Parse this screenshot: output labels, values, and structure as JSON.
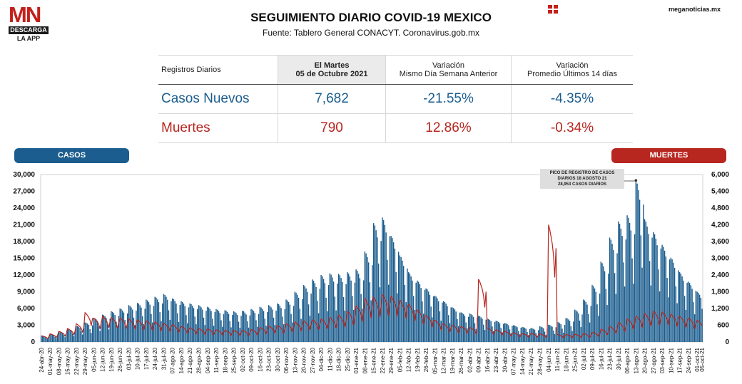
{
  "brand": {
    "logo_mn": "MN",
    "logo_bar": "DESCARGA",
    "logo_sub": "LA APP",
    "site": "meganoticias.mx"
  },
  "header": {
    "title": "SEGUIMIENTO DIARIO COVID-19 MEXICO",
    "source": "Fuente: Tablero General CONACYT. Coronavirus.gob.mx"
  },
  "table": {
    "col1": "Registros Diarios",
    "col2_line1": "El Martes",
    "col2_line2": "05 de Octubre 2021",
    "col3_line1": "Variación",
    "col3_line2": "Mismo Día Semana Anterior",
    "col4_line1": "Variación",
    "col4_line2": "Promedio Últimos 14 días",
    "rows": [
      {
        "label": "Casos Nuevos",
        "value": "7,682",
        "var_week": "-21.55%",
        "var_14": "-4.35%"
      },
      {
        "label": "Muertes",
        "value": "790",
        "var_week": "12.86%",
        "var_14": "-0.34%"
      }
    ]
  },
  "legend": {
    "casos": "CASOS",
    "muertes": "MUERTES"
  },
  "annotation": {
    "line1": "PICO DE REGISTRO DE CASOS",
    "line2": "DIARIOS 18 AGOSTO 21",
    "line3": "28,953 CASOS DIARIOS"
  },
  "colors": {
    "casos": "#1b5d8e",
    "muertes": "#b7261f"
  },
  "chart_data": {
    "type": "bar",
    "x_start": "2020-04-24",
    "x_end": "2021-10-05",
    "y_left": {
      "label": "",
      "range": [
        0,
        30000
      ],
      "ticks": [
        "0",
        "3,000",
        "6,000",
        "9,000",
        "12,000",
        "15,000",
        "18,000",
        "21,000",
        "24,000",
        "27,000",
        "30,000"
      ]
    },
    "y_right": {
      "label": "",
      "range": [
        0,
        6000
      ],
      "ticks": [
        "0",
        "600",
        "1,200",
        "1,800",
        "2,400",
        "3,000",
        "3,600",
        "4,200",
        "4,800",
        "5,400",
        "6,000"
      ]
    },
    "x_ticks": [
      "24-abr-20",
      "01-may-20",
      "08-may-20",
      "15-may-20",
      "22-may-20",
      "29-may-20",
      "05-jun-20",
      "12-jun-20",
      "19-jun-20",
      "26-jun-20",
      "03-jul-20",
      "10-jul-20",
      "17-jul-20",
      "24-jul-20",
      "31-jul-20",
      "07-ago-20",
      "14-ago-20",
      "21-ago-20",
      "28-ago-20",
      "04-sep-20",
      "11-sep-20",
      "18-sep-20",
      "25-sep-20",
      "02-oct-20",
      "09-oct-20",
      "16-oct-20",
      "23-oct-20",
      "30-oct-20",
      "06-nov-20",
      "13-nov-20",
      "20-nov-20",
      "27-nov-20",
      "04-dic-20",
      "11-dic-20",
      "18-dic-20",
      "25-dic-20",
      "01-ene-21",
      "08-ene-21",
      "15-ene-21",
      "22-ene-21",
      "29-ene-21",
      "05-feb-21",
      "12-feb-21",
      "19-feb-21",
      "26-feb-21",
      "05-mar-21",
      "12-mar-21",
      "19-mar-21",
      "26-mar-21",
      "02-abr-21",
      "09-abr-21",
      "16-abr-21",
      "23-abr-21",
      "30-abr-21",
      "07-may-21",
      "14-may-21",
      "21-may-21",
      "28-may-21",
      "04-jun-21",
      "11-jun-21",
      "18-jun-21",
      "25-jun-21",
      "02-jul-21",
      "09-jul-21",
      "16-jul-21",
      "23-jul-21",
      "30-jul-21",
      "06-ago-21",
      "13-ago-21",
      "20-ago-21",
      "27-ago-21",
      "03-sep-21",
      "10-sep-21",
      "17-sep-21",
      "24-sep-21",
      "01-oct-21",
      "05-oct-21"
    ],
    "series": [
      {
        "name": "CASOS",
        "axis": "left",
        "style": "bars",
        "weekly_peaks": [
          1100,
          1400,
          1900,
          2300,
          2900,
          3500,
          4300,
          4900,
          5500,
          6000,
          6600,
          7000,
          7600,
          8100,
          8600,
          7800,
          7300,
          6900,
          6600,
          6300,
          5900,
          5700,
          5500,
          5600,
          5900,
          6300,
          6600,
          6900,
          7600,
          9000,
          10200,
          11200,
          12000,
          12300,
          12200,
          12500,
          13000,
          16200,
          21300,
          22300,
          19000,
          15500,
          12500,
          11000,
          9600,
          8300,
          7300,
          6200,
          5300,
          5100,
          4700,
          4200,
          3800,
          3400,
          3000,
          2700,
          2500,
          2800,
          3100,
          3600,
          4300,
          5800,
          7600,
          10200,
          14400,
          18700,
          21600,
          22700,
          28953,
          22000,
          19700,
          17400,
          15100,
          12500,
          10800,
          9000,
          7682
        ],
        "weekday_pattern": [
          1.0,
          0.98,
          0.94,
          0.88,
          0.66,
          0.46,
          0.85
        ]
      },
      {
        "name": "MUERTES",
        "axis": "right",
        "style": "line",
        "weekly_peaks": [
          220,
          290,
          380,
          480,
          650,
          1050,
          850,
          920,
          880,
          860,
          820,
          790,
          760,
          720,
          670,
          620,
          560,
          510,
          480,
          470,
          440,
          420,
          410,
          420,
          450,
          520,
          570,
          590,
          650,
          720,
          760,
          800,
          830,
          880,
          960,
          1100,
          1300,
          1550,
          1600,
          1700,
          1650,
          1500,
          1350,
          1150,
          950,
          780,
          650,
          600,
          560,
          520,
          2250,
          500,
          440,
          380,
          330,
          300,
          310,
          290,
          4200,
          270,
          270,
          280,
          300,
          350,
          460,
          560,
          700,
          830,
          930,
          1020,
          1100,
          1080,
          1000,
          920,
          850,
          780,
          790
        ],
        "weekday_pattern": [
          1.0,
          0.96,
          0.9,
          0.84,
          0.74,
          0.55,
          0.8
        ]
      }
    ]
  }
}
